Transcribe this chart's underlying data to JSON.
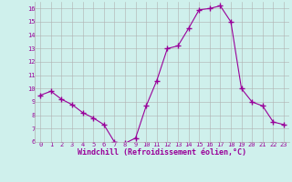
{
  "x": [
    0,
    1,
    2,
    3,
    4,
    5,
    6,
    7,
    8,
    9,
    10,
    11,
    12,
    13,
    14,
    15,
    16,
    17,
    18,
    19,
    20,
    21,
    22,
    23
  ],
  "y": [
    9.5,
    9.8,
    9.2,
    8.8,
    8.2,
    7.8,
    7.3,
    6.0,
    5.9,
    6.3,
    8.7,
    10.6,
    13.0,
    13.2,
    14.5,
    15.9,
    16.0,
    16.2,
    15.0,
    10.0,
    9.0,
    8.7,
    7.5,
    7.3
  ],
  "line_color": "#990099",
  "marker": "+",
  "marker_size": 4,
  "marker_lw": 1.0,
  "bg_color": "#cff0ec",
  "grid_color": "#b0b0b0",
  "xlabel": "Windchill (Refroidissement éolien,°C)",
  "xlabel_color": "#990099",
  "tick_color": "#990099",
  "ylim": [
    6,
    16.5
  ],
  "xlim": [
    -0.5,
    23.5
  ],
  "yticks": [
    6,
    7,
    8,
    9,
    10,
    11,
    12,
    13,
    14,
    15,
    16
  ],
  "xticks": [
    0,
    1,
    2,
    3,
    4,
    5,
    6,
    7,
    8,
    9,
    10,
    11,
    12,
    13,
    14,
    15,
    16,
    17,
    18,
    19,
    20,
    21,
    22,
    23
  ],
  "label_fontsize": 6,
  "tick_fontsize": 5
}
